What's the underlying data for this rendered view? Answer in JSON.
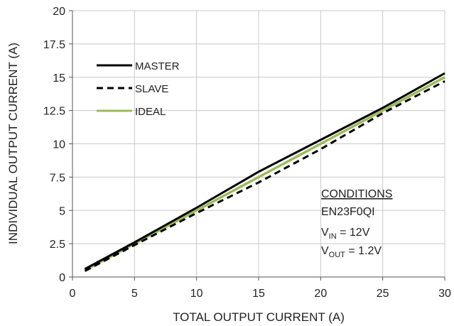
{
  "chart_data": {
    "type": "line",
    "x_label": "TOTAL OUTPUT CURRENT (A)",
    "y_label": "INDIVIDUAL OUTPUT CURRENT (A)",
    "x": [
      1,
      5,
      10,
      15,
      20,
      25,
      30
    ],
    "series": [
      {
        "name": "MASTER",
        "color": "#000000",
        "line_style": "solid",
        "values": [
          0.6,
          2.6,
          5.2,
          7.9,
          10.3,
          12.7,
          15.3
        ]
      },
      {
        "name": "SLAVE",
        "color": "#000000",
        "line_style": "dashed",
        "values": [
          0.45,
          2.4,
          4.8,
          7.1,
          9.6,
          12.3,
          14.7
        ]
      },
      {
        "name": "IDEAL",
        "color": "#9bbb59",
        "line_style": "solid",
        "values": [
          0.5,
          2.5,
          5,
          7.5,
          10,
          12.5,
          15
        ]
      }
    ],
    "xlim": [
      0,
      30
    ],
    "xticks": [
      0,
      5,
      10,
      15,
      20,
      25,
      30
    ],
    "ylim": [
      0,
      20
    ],
    "yticks": [
      0,
      2.5,
      5,
      7.5,
      10,
      12.5,
      15,
      17.5,
      20
    ],
    "grid": true,
    "legend": "upper left",
    "conditions": {
      "heading": "CONDITIONS",
      "device": "EN23F0QI",
      "vin": {
        "main": "V",
        "sub": "IN",
        "rest": " = 12V"
      },
      "vout": {
        "main": "V",
        "sub": "OUT",
        "rest": " = 1.2V"
      }
    }
  }
}
